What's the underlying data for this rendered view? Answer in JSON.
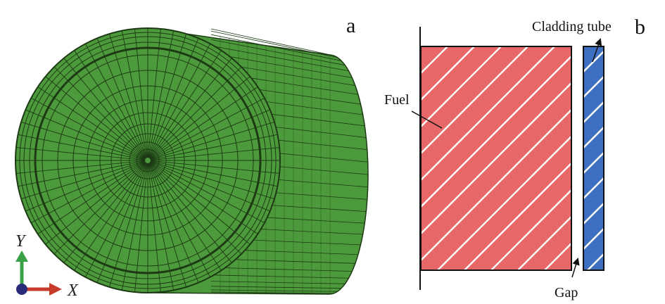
{
  "panel_a": {
    "label": "a",
    "axis_y_label": "Y",
    "axis_x_label": "X"
  },
  "panel_b": {
    "label": "b",
    "fuel_label": "Fuel",
    "cladding_label": "Cladding tube",
    "gap_label": "Gap"
  },
  "colors": {
    "mesh_fill": "#4c9a3b",
    "mesh_line": "#1d3a14",
    "fuel_fill": "#e8686a",
    "cladding_fill": "#3f6fc0",
    "axis_y": "#3aa048",
    "axis_x": "#c83a2a",
    "axis_origin": "#2a2a7a"
  }
}
